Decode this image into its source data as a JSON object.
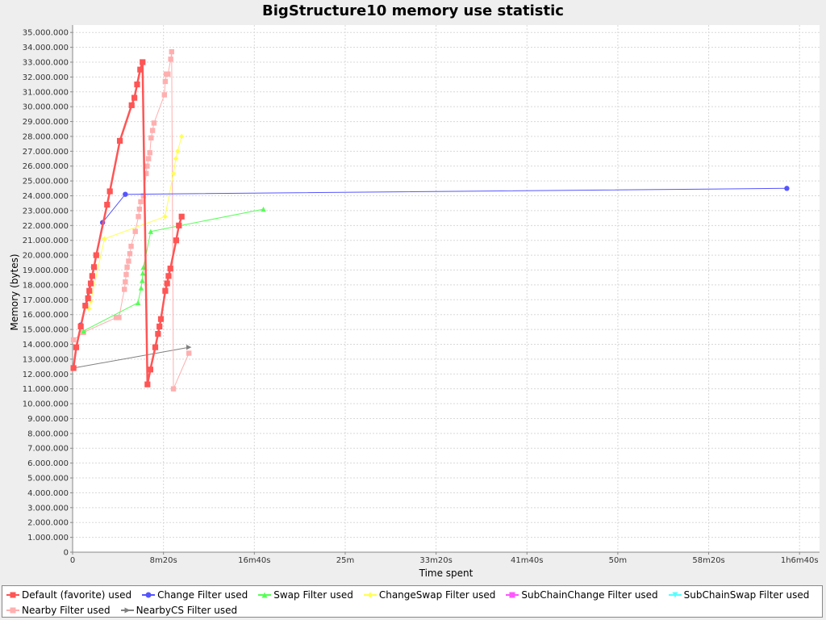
{
  "chart_data": {
    "type": "line",
    "title": "BigStructure10 memory use statistic",
    "xlabel": "Time spent",
    "ylabel": "Memory (bytes)",
    "x_unit": "seconds",
    "xlim": [
      0,
      4110
    ],
    "ylim": [
      0,
      35500000
    ],
    "xticks": [
      {
        "value": 0,
        "label": "0"
      },
      {
        "value": 500,
        "label": "8m20s"
      },
      {
        "value": 1000,
        "label": "16m40s"
      },
      {
        "value": 1500,
        "label": "25m"
      },
      {
        "value": 2000,
        "label": "33m20s"
      },
      {
        "value": 2500,
        "label": "41m40s"
      },
      {
        "value": 3000,
        "label": "50m"
      },
      {
        "value": 3500,
        "label": "58m20s"
      },
      {
        "value": 4000,
        "label": "1h6m40s"
      }
    ],
    "yticks": [
      {
        "value": 0,
        "label": "0"
      },
      {
        "value": 1000000,
        "label": "1.000.000"
      },
      {
        "value": 2000000,
        "label": "2.000.000"
      },
      {
        "value": 3000000,
        "label": "3.000.000"
      },
      {
        "value": 4000000,
        "label": "4.000.000"
      },
      {
        "value": 5000000,
        "label": "5.000.000"
      },
      {
        "value": 6000000,
        "label": "6.000.000"
      },
      {
        "value": 7000000,
        "label": "7.000.000"
      },
      {
        "value": 8000000,
        "label": "8.000.000"
      },
      {
        "value": 9000000,
        "label": "9.000.000"
      },
      {
        "value": 10000000,
        "label": "10.000.000"
      },
      {
        "value": 11000000,
        "label": "11.000.000"
      },
      {
        "value": 12000000,
        "label": "12.000.000"
      },
      {
        "value": 13000000,
        "label": "13.000.000"
      },
      {
        "value": 14000000,
        "label": "14.000.000"
      },
      {
        "value": 15000000,
        "label": "15.000.000"
      },
      {
        "value": 16000000,
        "label": "16.000.000"
      },
      {
        "value": 17000000,
        "label": "17.000.000"
      },
      {
        "value": 18000000,
        "label": "18.000.000"
      },
      {
        "value": 19000000,
        "label": "19.000.000"
      },
      {
        "value": 20000000,
        "label": "20.000.000"
      },
      {
        "value": 21000000,
        "label": "21.000.000"
      },
      {
        "value": 22000000,
        "label": "22.000.000"
      },
      {
        "value": 23000000,
        "label": "23.000.000"
      },
      {
        "value": 24000000,
        "label": "24.000.000"
      },
      {
        "value": 25000000,
        "label": "25.000.000"
      },
      {
        "value": 26000000,
        "label": "26.000.000"
      },
      {
        "value": 27000000,
        "label": "27.000.000"
      },
      {
        "value": 28000000,
        "label": "28.000.000"
      },
      {
        "value": 29000000,
        "label": "29.000.000"
      },
      {
        "value": 30000000,
        "label": "30.000.000"
      },
      {
        "value": 31000000,
        "label": "31.000.000"
      },
      {
        "value": 32000000,
        "label": "32.000.000"
      },
      {
        "value": 33000000,
        "label": "33.000.000"
      },
      {
        "value": 34000000,
        "label": "34.000.000"
      },
      {
        "value": 35000000,
        "label": "35.000.000"
      }
    ],
    "grid": true,
    "legend_position": "bottom",
    "series": [
      {
        "name": "Default (favorite) used",
        "color": "#ff5555",
        "marker": "square",
        "stroke_width": 2.5,
        "points": [
          [
            5,
            12400000
          ],
          [
            20,
            13800000
          ],
          [
            45,
            15200000
          ],
          [
            70,
            16600000
          ],
          [
            85,
            17100000
          ],
          [
            92,
            17600000
          ],
          [
            100,
            18100000
          ],
          [
            108,
            18600000
          ],
          [
            118,
            19200000
          ],
          [
            130,
            20000000
          ],
          [
            190,
            23400000
          ],
          [
            205,
            24300000
          ],
          [
            260,
            27700000
          ],
          [
            325,
            30100000
          ],
          [
            340,
            30600000
          ],
          [
            355,
            31500000
          ],
          [
            372,
            32500000
          ],
          [
            385,
            33000000
          ],
          [
            412,
            11300000
          ],
          [
            428,
            12300000
          ],
          [
            455,
            13800000
          ],
          [
            470,
            14700000
          ],
          [
            478,
            15200000
          ],
          [
            486,
            15700000
          ],
          [
            510,
            17600000
          ],
          [
            520,
            18100000
          ],
          [
            528,
            18600000
          ],
          [
            538,
            19100000
          ],
          [
            570,
            21000000
          ],
          [
            585,
            22000000
          ],
          [
            600,
            22600000
          ]
        ]
      },
      {
        "name": "Change Filter used",
        "color": "#5555ff",
        "marker": "circle",
        "stroke_width": 1,
        "points": [
          [
            5,
            12400000
          ],
          [
            45,
            15300000
          ],
          [
            115,
            19200000
          ],
          [
            165,
            22200000
          ],
          [
            290,
            24100000
          ],
          [
            3930,
            24500000
          ]
        ]
      },
      {
        "name": "Swap Filter used",
        "color": "#55ff55",
        "marker": "triangle-up",
        "stroke_width": 1,
        "points": [
          [
            60,
            14900000
          ],
          [
            360,
            16800000
          ],
          [
            377,
            17800000
          ],
          [
            383,
            18300000
          ],
          [
            386,
            18800000
          ],
          [
            390,
            19200000
          ],
          [
            430,
            21600000
          ],
          [
            1050,
            23100000
          ]
        ]
      },
      {
        "name": "ChangeSwap Filter used",
        "color": "#ffff55",
        "marker": "diamond",
        "stroke_width": 1,
        "points": [
          [
            90,
            16400000
          ],
          [
            100,
            16900000
          ],
          [
            175,
            21100000
          ],
          [
            508,
            22600000
          ],
          [
            555,
            25500000
          ],
          [
            568,
            26500000
          ],
          [
            578,
            27000000
          ],
          [
            600,
            28000000
          ]
        ]
      },
      {
        "name": "SubChainChange Filter used",
        "color": "#ff55ff",
        "marker": "square",
        "stroke_width": 1,
        "points": []
      },
      {
        "name": "SubChainSwap Filter used",
        "color": "#55ffff",
        "marker": "triangle-down",
        "stroke_width": 1,
        "points": []
      },
      {
        "name": "Nearby Filter used",
        "color": "#ffafaf",
        "marker": "square",
        "stroke_width": 1,
        "points": [
          [
            5,
            14300000
          ],
          [
            60,
            14800000
          ],
          [
            240,
            15800000
          ],
          [
            255,
            15800000
          ],
          [
            285,
            17700000
          ],
          [
            290,
            18200000
          ],
          [
            295,
            18700000
          ],
          [
            300,
            19200000
          ],
          [
            308,
            19600000
          ],
          [
            315,
            20100000
          ],
          [
            322,
            20600000
          ],
          [
            345,
            21600000
          ],
          [
            362,
            22600000
          ],
          [
            368,
            23100000
          ],
          [
            375,
            23600000
          ],
          [
            390,
            24000000
          ],
          [
            405,
            25500000
          ],
          [
            410,
            26000000
          ],
          [
            418,
            26500000
          ],
          [
            425,
            26900000
          ],
          [
            432,
            27900000
          ],
          [
            440,
            28400000
          ],
          [
            448,
            28900000
          ],
          [
            505,
            30800000
          ],
          [
            510,
            31700000
          ],
          [
            515,
            32200000
          ],
          [
            525,
            32200000
          ],
          [
            540,
            33200000
          ],
          [
            545,
            33700000
          ],
          [
            555,
            11000000
          ],
          [
            640,
            13400000
          ]
        ]
      },
      {
        "name": "NearbyCS Filter used",
        "color": "#808080",
        "marker": "triangle-right",
        "stroke_width": 1,
        "points": [
          [
            5,
            12400000
          ],
          [
            640,
            13800000
          ]
        ]
      }
    ]
  }
}
